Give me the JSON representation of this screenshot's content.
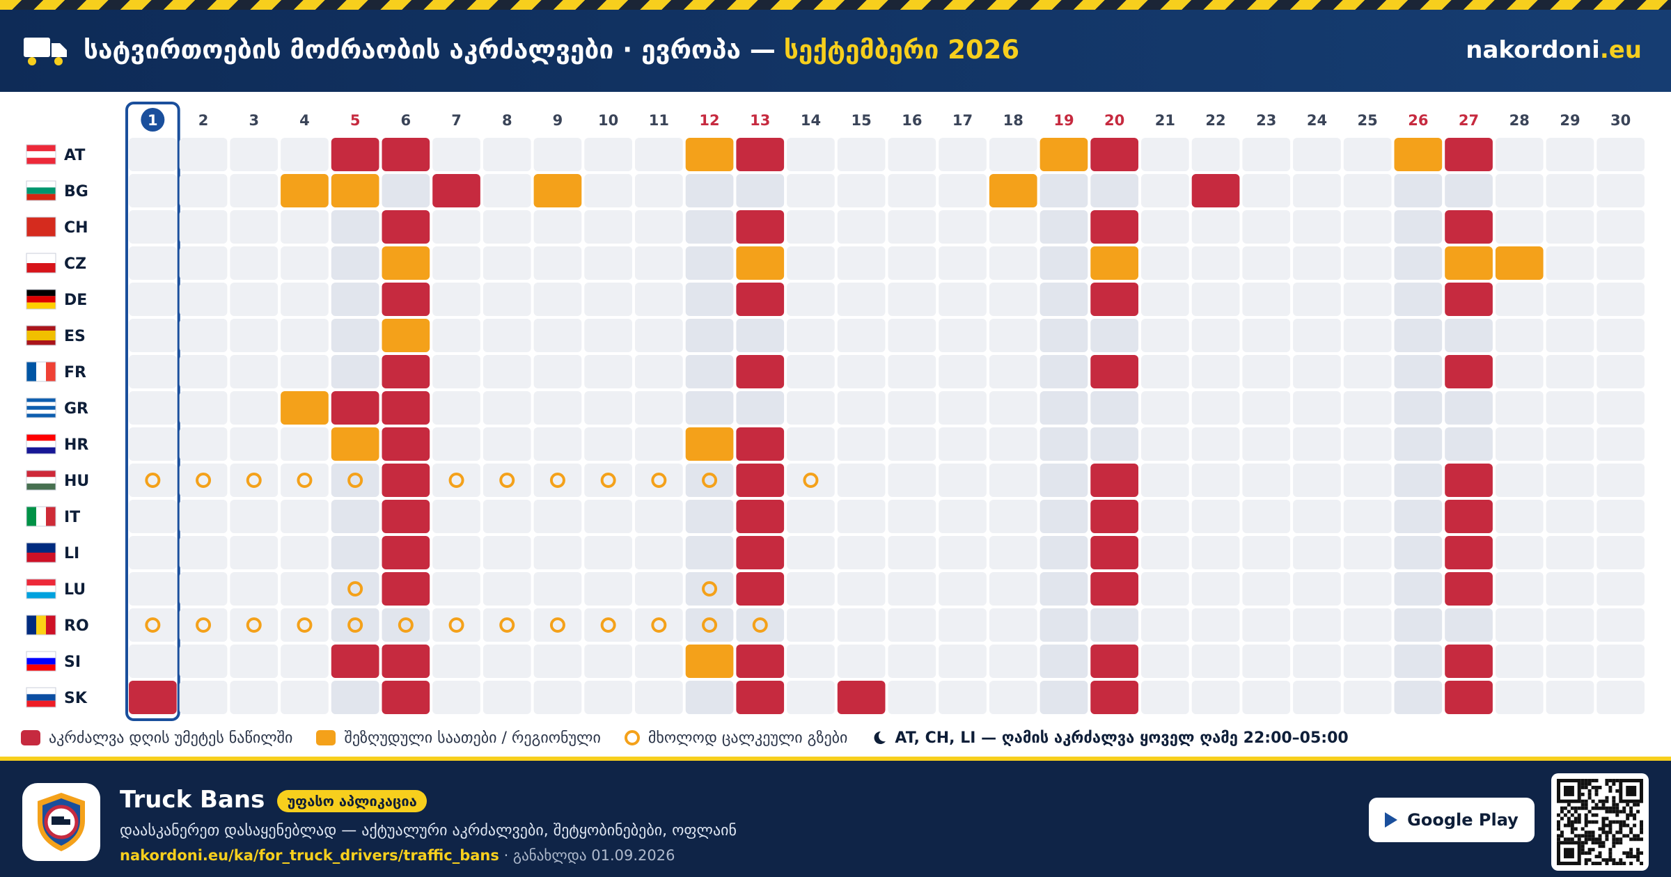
{
  "header": {
    "title": "სატვირთოების მოძრაობის აკრძალვები · ევროპა —",
    "month": "სექტემბერი 2026",
    "site": "nakordoni",
    "site_tld": ".eu"
  },
  "calendar": {
    "days": [
      1,
      2,
      3,
      4,
      5,
      6,
      7,
      8,
      9,
      10,
      11,
      12,
      13,
      14,
      15,
      16,
      17,
      18,
      19,
      20,
      21,
      22,
      23,
      24,
      25,
      26,
      27,
      28,
      29,
      30
    ],
    "today": 1,
    "red_days": [
      5,
      12,
      13,
      19,
      20,
      26,
      27
    ],
    "shaded_days": [
      5,
      6,
      12,
      13,
      19,
      20,
      26,
      27
    ],
    "colors": {
      "ban": "#c62a3f",
      "partial": "#f4a11a",
      "roads": "#f4a11a"
    },
    "countries": [
      {
        "code": "AT",
        "flag_h": [
          "#ed2939",
          "#ffffff",
          "#ed2939"
        ],
        "ban": [
          5,
          6,
          13,
          20,
          27
        ],
        "partial": [
          12,
          19,
          26
        ]
      },
      {
        "code": "BG",
        "flag_h": [
          "#ffffff",
          "#00966e",
          "#d62612"
        ],
        "ban": [
          7,
          22
        ],
        "partial": [
          4,
          5,
          9,
          18
        ]
      },
      {
        "code": "CH",
        "flag_h": [
          "#d52b1e"
        ],
        "ban": [
          6,
          13,
          20,
          27
        ]
      },
      {
        "code": "CZ",
        "flag_h": [
          "#ffffff",
          "#d7141a"
        ],
        "partial": [
          6,
          13,
          20,
          27,
          28
        ]
      },
      {
        "code": "DE",
        "flag_h": [
          "#000000",
          "#dd0000",
          "#ffce00"
        ],
        "ban": [
          6,
          13,
          20,
          27
        ]
      },
      {
        "code": "ES",
        "flag_h": [
          "#aa151b",
          "#f1bf00",
          "#f1bf00",
          "#aa151b"
        ],
        "partial": [
          6
        ]
      },
      {
        "code": "FR",
        "flag_v": [
          "#0055a4",
          "#ffffff",
          "#ef4135"
        ],
        "ban": [
          6,
          13,
          20,
          27
        ]
      },
      {
        "code": "GR",
        "flag_h": [
          "#0d5eaf",
          "#ffffff",
          "#0d5eaf",
          "#ffffff",
          "#0d5eaf"
        ],
        "ban": [
          5,
          6
        ],
        "partial": [
          4
        ]
      },
      {
        "code": "HR",
        "flag_h": [
          "#ff0000",
          "#ffffff",
          "#171796"
        ],
        "ban": [
          6,
          13
        ],
        "partial": [
          5,
          12
        ]
      },
      {
        "code": "HU",
        "flag_h": [
          "#ce2939",
          "#ffffff",
          "#477050"
        ],
        "ban": [
          6,
          13,
          20,
          27
        ],
        "roads": [
          1,
          2,
          3,
          4,
          5,
          7,
          8,
          9,
          10,
          11,
          12,
          14
        ]
      },
      {
        "code": "IT",
        "flag_v": [
          "#009246",
          "#ffffff",
          "#ce2b37"
        ],
        "ban": [
          6,
          13,
          20,
          27
        ]
      },
      {
        "code": "LI",
        "flag_h": [
          "#002b7f",
          "#ce1126"
        ],
        "ban": [
          6,
          13,
          20,
          27
        ]
      },
      {
        "code": "LU",
        "flag_h": [
          "#ed2939",
          "#ffffff",
          "#00a1de"
        ],
        "ban": [
          6,
          13,
          20,
          27
        ],
        "roads": [
          5,
          12
        ]
      },
      {
        "code": "RO",
        "flag_v": [
          "#002b7f",
          "#fcd116",
          "#ce1126"
        ],
        "roads": [
          1,
          2,
          3,
          4,
          5,
          6,
          7,
          8,
          9,
          10,
          11,
          12,
          13
        ]
      },
      {
        "code": "SI",
        "flag_h": [
          "#ffffff",
          "#0000ff",
          "#ff0000"
        ],
        "ban": [
          5,
          6,
          13,
          20,
          27
        ],
        "partial": [
          12
        ]
      },
      {
        "code": "SK",
        "flag_h": [
          "#ffffff",
          "#0b4ea2",
          "#ee1c25"
        ],
        "ban": [
          1,
          6,
          13,
          15,
          20,
          27
        ]
      }
    ]
  },
  "legend": {
    "ban": "აკრძალვა დღის უმეტეს ნაწილში",
    "partial": "შეზღუდული საათები / რეგიონული",
    "roads": "მხოლოდ ცალკეული გზები",
    "night": "AT, CH, LI — ღამის აკრძალვა ყოველ ღამე 22:00–05:00"
  },
  "footer": {
    "app": "Truck Bans",
    "badge": "უფასო აპლიკაცია",
    "description": "დაასკანერეთ დასაყენებლად — აქტუალური აკრძალვები, შეტყობინებები, ოფლაინ",
    "link": "nakordoni.eu/ka/for_truck_drivers/traffic_bans",
    "updated": "· განახლდა 01.09.2026",
    "store": "Google Play"
  }
}
